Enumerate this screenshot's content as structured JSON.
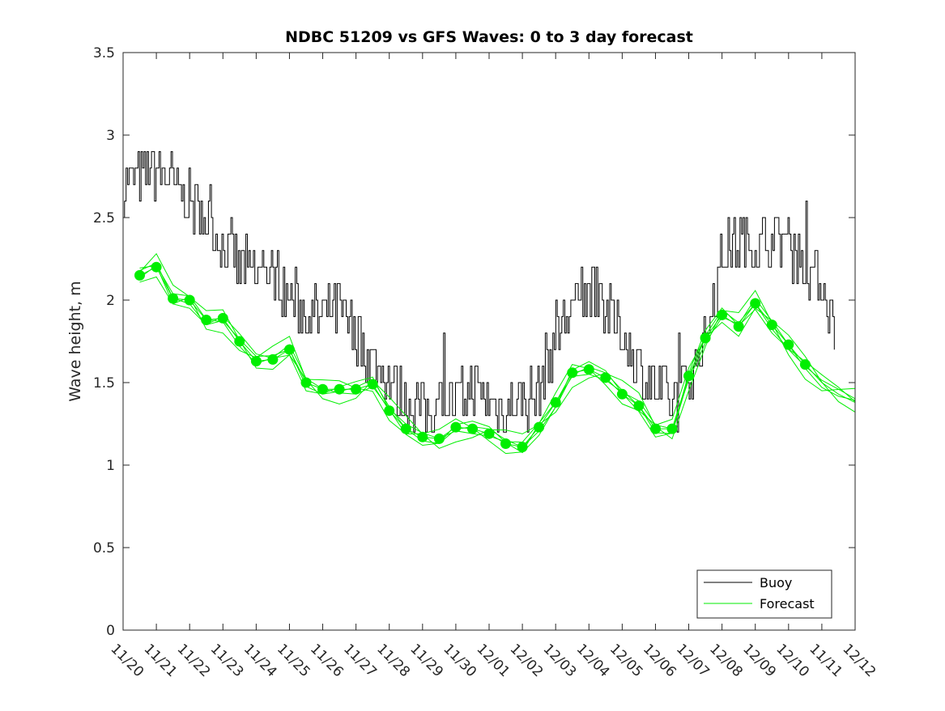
{
  "chart_data": {
    "type": "line",
    "title": "NDBC 51209 vs GFS Waves: 0 to 3 day forecast",
    "xlabel": "",
    "ylabel": "Wave height, m",
    "ylim": [
      0,
      3.5
    ],
    "yticks": [
      0,
      0.5,
      1,
      1.5,
      2,
      2.5,
      3,
      3.5
    ],
    "ytick_labels": [
      "0",
      "0.5",
      "1",
      "1.5",
      "2",
      "2.5",
      "3",
      "3.5"
    ],
    "xlim_days": [
      0,
      22
    ],
    "xtick_labels": [
      "11/20",
      "11/21",
      "11/22",
      "11/23",
      "11/24",
      "11/25",
      "11/26",
      "11/27",
      "11/28",
      "11/29",
      "11/30",
      "12/01",
      "12/02",
      "12/03",
      "12/04",
      "12/05",
      "12/06",
      "12/07",
      "12/08",
      "12/09",
      "12/10",
      "11/11",
      "12/12"
    ],
    "grid": false,
    "legend": {
      "position": "bottom-right",
      "entries": [
        "Buoy",
        "Forecast"
      ]
    },
    "colors": {
      "buoy": "#000000",
      "forecast": "#00ee00",
      "axes": "#262626"
    },
    "series": [
      {
        "name": "Buoy",
        "x_days": [
          0,
          0.5,
          1,
          1.5,
          2,
          2.5,
          3,
          3.5,
          4,
          4.5,
          5,
          5.5,
          6,
          6.5,
          7,
          7.5,
          8,
          8.5,
          9,
          9.5,
          10,
          10.5,
          11,
          11.5,
          12,
          12.5,
          13,
          13.5,
          14,
          14.5,
          15,
          15.5,
          16,
          16.5,
          17,
          17.5,
          18,
          18.5,
          19,
          19.5,
          20,
          20.5,
          21,
          21.4
        ],
        "values": [
          2.7,
          2.75,
          2.8,
          2.7,
          2.6,
          2.5,
          2.35,
          2.2,
          2.15,
          2.15,
          2.05,
          1.9,
          1.9,
          1.95,
          1.75,
          1.65,
          1.5,
          1.4,
          1.35,
          1.35,
          1.4,
          1.45,
          1.4,
          1.35,
          1.4,
          1.45,
          1.8,
          1.95,
          2.05,
          1.95,
          1.8,
          1.6,
          1.45,
          1.35,
          1.5,
          1.8,
          2.25,
          2.35,
          2.35,
          2.4,
          2.35,
          2.2,
          2.1,
          1.8
        ]
      },
      {
        "name": "Forecast",
        "x_days": [
          0.5,
          1,
          1.5,
          2,
          2.5,
          3,
          3.5,
          4,
          4.5,
          5,
          5.5,
          6,
          6.5,
          7,
          7.5,
          8,
          8.5,
          9,
          9.5,
          10,
          10.5,
          11,
          11.5,
          12,
          12.5,
          13,
          13.5,
          14,
          14.5,
          15,
          15.5,
          16,
          16.5,
          17,
          17.5,
          18,
          18.5,
          19,
          19.5,
          20,
          20.5,
          21,
          21.5,
          22
        ],
        "values": [
          2.15,
          2.2,
          2.01,
          2.0,
          1.88,
          1.89,
          1.75,
          1.63,
          1.64,
          1.7,
          1.5,
          1.46,
          1.46,
          1.46,
          1.49,
          1.33,
          1.22,
          1.17,
          1.16,
          1.23,
          1.22,
          1.19,
          1.13,
          1.11,
          1.23,
          1.38,
          1.56,
          1.58,
          1.53,
          1.43,
          1.36,
          1.22,
          1.22,
          1.54,
          1.77,
          1.91,
          1.84,
          1.98,
          1.85,
          1.73,
          1.61,
          1.5,
          1.43,
          1.38
        ]
      }
    ]
  }
}
